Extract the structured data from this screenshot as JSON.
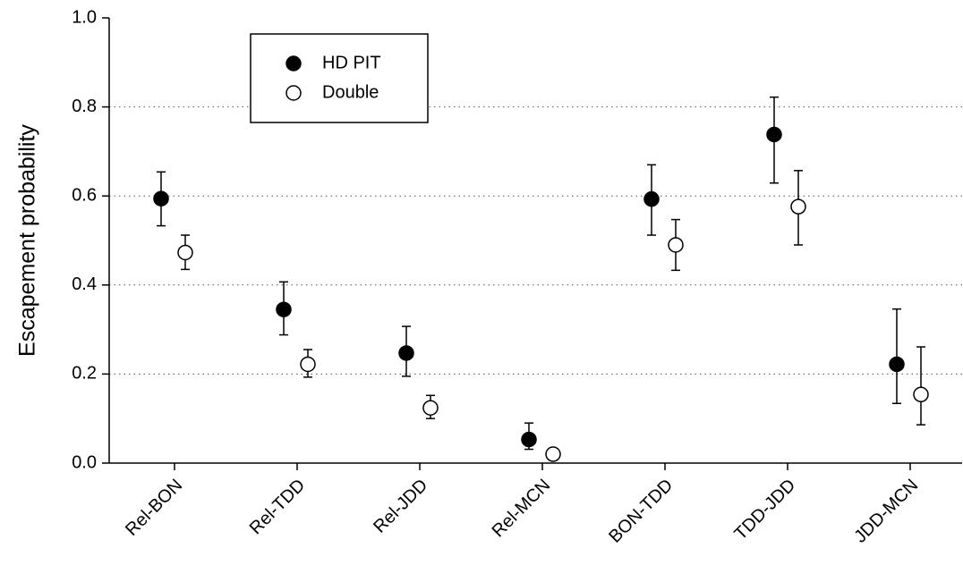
{
  "chart_data": {
    "type": "errorbar-scatter",
    "y_label": "Escapement probability",
    "categories": [
      "Rel-BON",
      "Rel-TDD",
      "Rel-JDD",
      "Rel-MCN",
      "BON-TDD",
      "TDD-JDD",
      "JDD-MCN"
    ],
    "series": [
      {
        "name": "HD PIT",
        "color": "#000000",
        "marker": "filled",
        "values": [
          0.594,
          0.345,
          0.247,
          0.053,
          0.593,
          0.738,
          0.222
        ],
        "lower": [
          0.533,
          0.288,
          0.195,
          0.031,
          0.512,
          0.629,
          0.134
        ],
        "upper": [
          0.654,
          0.407,
          0.307,
          0.09,
          0.67,
          0.822,
          0.346
        ]
      },
      {
        "name": "Double",
        "color": "#000000",
        "marker": "open",
        "values": [
          0.473,
          0.222,
          0.124,
          0.02,
          0.49,
          0.576,
          0.154
        ],
        "lower": [
          0.435,
          0.193,
          0.1,
          0.02,
          0.433,
          0.49,
          0.086
        ],
        "upper": [
          0.512,
          0.255,
          0.152,
          0.02,
          0.547,
          0.657,
          0.261
        ]
      }
    ],
    "ylim": [
      0,
      1
    ],
    "yticks": [
      {
        "value": 0,
        "label": "0.0"
      },
      {
        "value": 0.2,
        "label": "0.2"
      },
      {
        "value": 0.4,
        "label": "0.4"
      },
      {
        "value": 0.6,
        "label": "0.6"
      },
      {
        "value": 0.8,
        "label": "0.8"
      },
      {
        "value": 1,
        "label": "1.0"
      }
    ],
    "grid": true,
    "legend": "upper left"
  }
}
